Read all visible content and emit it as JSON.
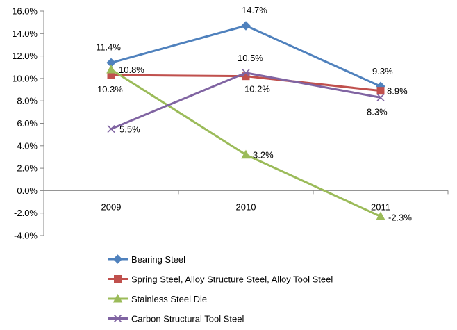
{
  "chart_data": {
    "type": "line",
    "title": "",
    "xlabel": "",
    "ylabel": "",
    "categories": [
      "2009",
      "2010",
      "2011"
    ],
    "ylim": [
      -4.0,
      16.0
    ],
    "ytick_step": 2.0,
    "ytick_labels": [
      "-4.0%",
      "-2.0%",
      "0.0%",
      "2.0%",
      "4.0%",
      "6.0%",
      "8.0%",
      "10.0%",
      "12.0%",
      "14.0%",
      "16.0%"
    ],
    "grid": false,
    "legend_position": "bottom",
    "series": [
      {
        "name": "Bearing Steel",
        "values": [
          11.4,
          14.7,
          9.3
        ],
        "labels": [
          "11.4%",
          "14.7%",
          "9.3%"
        ],
        "color": "#4F81BD",
        "marker": "diamond"
      },
      {
        "name": "Spring Steel, Alloy Structure Steel, Alloy Tool Steel",
        "values": [
          10.3,
          10.2,
          8.9
        ],
        "labels": [
          "10.3%",
          "10.2%",
          "8.9%"
        ],
        "color": "#C0504D",
        "marker": "square"
      },
      {
        "name": "Stainless Steel Die",
        "values": [
          10.8,
          3.2,
          -2.3
        ],
        "labels": [
          "10.8%",
          "3.2%",
          "-2.3%"
        ],
        "color": "#9BBB59",
        "marker": "triangle"
      },
      {
        "name": "Carbon Structural Tool Steel",
        "values": [
          5.5,
          10.5,
          8.3
        ],
        "labels": [
          "5.5%",
          "10.5%",
          "8.3%"
        ],
        "color": "#8064A2",
        "marker": "x"
      }
    ]
  }
}
